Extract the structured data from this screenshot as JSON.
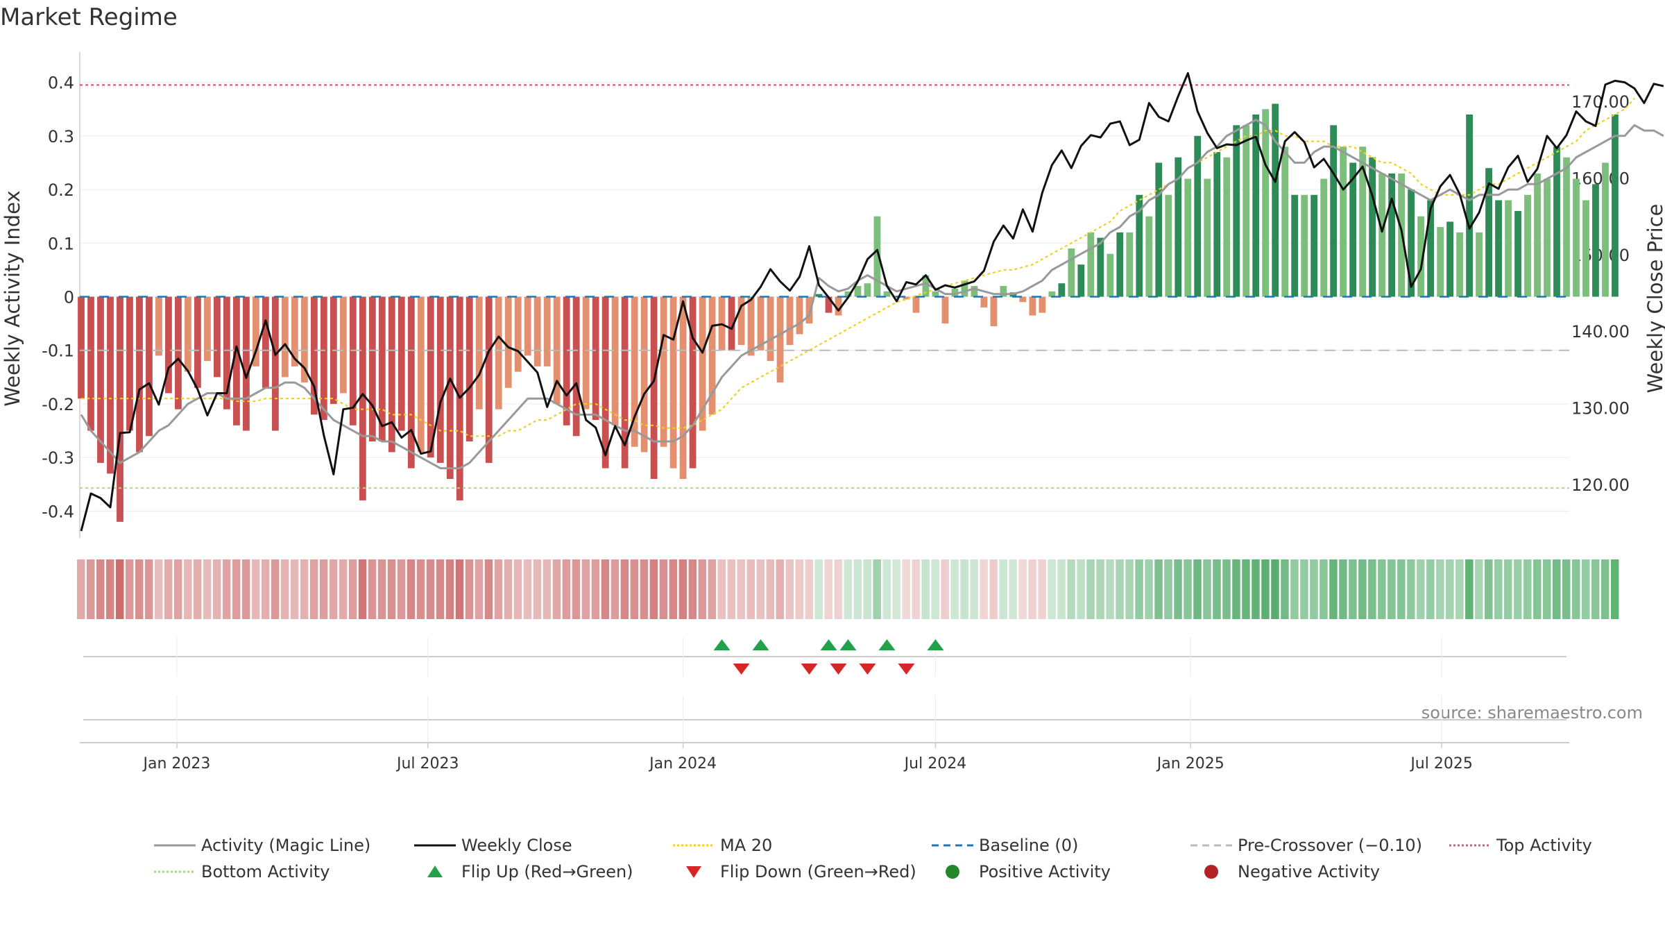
{
  "title": "Market Regime",
  "chart_data": {
    "type": "bar",
    "title": "Market Regime",
    "source_text": "source: sharemaestro.com",
    "x_axis": {
      "range": [
        "2022-10-23",
        "2025-10-01"
      ],
      "ticks": [
        "Jan 2023",
        "Jul 2023",
        "Jan 2024",
        "Jul 2024",
        "Jan 2025",
        "Jul 2025"
      ],
      "tick_dates": [
        "2023-01-01",
        "2023-07-01",
        "2024-01-01",
        "2024-07-01",
        "2025-01-01",
        "2025-07-01"
      ]
    },
    "left_axis": {
      "label": "Weekly Activity Index",
      "range": [
        -0.45,
        0.45
      ],
      "ticks": [
        -0.4,
        -0.3,
        -0.2,
        -0.1,
        0,
        0.1,
        0.2,
        0.3,
        0.4
      ],
      "tick_labels": [
        "-0.4",
        "-0.3",
        "-0.2",
        "-0.1",
        "0",
        "0.1",
        "0.2",
        "0.3",
        "0.4"
      ]
    },
    "right_axis": {
      "label": "Weekly Close Price",
      "range": [
        113,
        176
      ],
      "ticks": [
        120,
        130,
        140,
        150,
        160,
        170
      ],
      "tick_labels": [
        "120.00",
        "130.00",
        "140.00",
        "150.00",
        "160.00",
        "170.00"
      ]
    },
    "reference_lines": {
      "top_activity": 0.395,
      "bottom_activity": -0.357,
      "baseline": 0,
      "pre_crossover": -0.1
    },
    "flip_up_weeks": [
      66,
      70,
      77,
      79,
      83,
      88
    ],
    "flip_down_weeks": [
      68,
      75,
      78,
      81,
      85
    ],
    "colors": {
      "neg_strong": "#c85050",
      "neg_light": "#e39070",
      "pos_strong": "#2e8b57",
      "pos_light": "#7dbe7d",
      "magic_line": "#999999",
      "weekly_close": "#111111",
      "ma20": "#f0d020",
      "baseline": "#1f77b4",
      "pre_crossover": "#bbbbbb",
      "top_activity": "#e05a6a",
      "bottom_activity": "#a8d88a",
      "flip_up": "#22a04a",
      "flip_down": "#d62728",
      "positive_marker": "#22882a",
      "negative_marker": "#b22222"
    },
    "legend": [
      {
        "label": "Activity (Magic Line)",
        "kind": "line",
        "color": "#999999",
        "dash": ""
      },
      {
        "label": "Weekly Close",
        "kind": "line",
        "color": "#111111",
        "dash": ""
      },
      {
        "label": "MA 20",
        "kind": "line",
        "color": "#f0d020",
        "dash": "3,3"
      },
      {
        "label": "Baseline (0)",
        "kind": "line",
        "color": "#1f77b4",
        "dash": "10,7"
      },
      {
        "label": "Pre-Crossover (−0.10)",
        "kind": "line",
        "color": "#bbbbbb",
        "dash": "10,7"
      },
      {
        "label": "Top Activity",
        "kind": "line",
        "color": "#e05a6a",
        "dash": "3,3"
      },
      {
        "label": "Bottom Activity",
        "kind": "line",
        "color": "#a8d88a",
        "dash": "3,3"
      },
      {
        "label": "Flip Up (Red→Green)",
        "kind": "tri-up",
        "color": "#22a04a",
        "dash": ""
      },
      {
        "label": "Flip Down (Green→Red)",
        "kind": "tri-down",
        "color": "#d62728",
        "dash": ""
      },
      {
        "label": "Positive Activity",
        "kind": "dot",
        "color": "#22882a",
        "dash": ""
      },
      {
        "label": "Negative Activity",
        "kind": "dot",
        "color": "#b22222",
        "dash": ""
      }
    ],
    "series": [
      {
        "name": "Weekly Activity",
        "start_date": "2022-10-24",
        "step_days": 7,
        "values": [
          -0.19,
          -0.25,
          -0.31,
          -0.33,
          -0.42,
          -0.25,
          -0.29,
          -0.26,
          -0.11,
          -0.18,
          -0.21,
          -0.14,
          -0.17,
          -0.12,
          -0.15,
          -0.21,
          -0.24,
          -0.25,
          -0.13,
          -0.17,
          -0.25,
          -0.15,
          -0.13,
          -0.16,
          -0.22,
          -0.23,
          -0.2,
          -0.18,
          -0.24,
          -0.38,
          -0.27,
          -0.27,
          -0.29,
          -0.25,
          -0.32,
          -0.29,
          -0.3,
          -0.31,
          -0.34,
          -0.38,
          -0.27,
          -0.21,
          -0.31,
          -0.21,
          -0.17,
          -0.14,
          -0.11,
          -0.13,
          -0.13,
          -0.2,
          -0.24,
          -0.26,
          -0.21,
          -0.23,
          -0.32,
          -0.24,
          -0.32,
          -0.28,
          -0.29,
          -0.34,
          -0.28,
          -0.32,
          -0.34,
          -0.32,
          -0.25,
          -0.22,
          -0.1,
          -0.1,
          -0.09,
          -0.11,
          -0.1,
          -0.12,
          -0.16,
          -0.09,
          -0.07,
          -0.05,
          0.005,
          -0.03,
          -0.035,
          0.01,
          0.02,
          0.025,
          0.15,
          0.01,
          0.002,
          -0.005,
          -0.03,
          0.04,
          0.01,
          -0.05,
          0.015,
          0.03,
          0.02,
          -0.02,
          -0.055,
          0.02,
          0.008,
          -0.01,
          -0.035,
          -0.03,
          0.01,
          0.025,
          0.09,
          0.06,
          0.12,
          0.11,
          0.08,
          0.12,
          0.12,
          0.19,
          0.15,
          0.25,
          0.19,
          0.26,
          0.22,
          0.3,
          0.22,
          0.27,
          0.26,
          0.32,
          0.32,
          0.34,
          0.35,
          0.36,
          0.28,
          0.19,
          0.19,
          0.19,
          0.22,
          0.32,
          0.28,
          0.25,
          0.28,
          0.26,
          0.23,
          0.23,
          0.23,
          0.2,
          0.15,
          0.18,
          0.13,
          0.14,
          0.12,
          0.34,
          0.12,
          0.24,
          0.18,
          0.18,
          0.16,
          0.19,
          0.23,
          0.22,
          0.28,
          0.26,
          0.22,
          0.18,
          0.21,
          0.25,
          0.34
        ],
        "strength": [
          1,
          1,
          1,
          1,
          1,
          1,
          1,
          1,
          0,
          1,
          1,
          0,
          1,
          0,
          1,
          1,
          1,
          1,
          0,
          1,
          1,
          0,
          0,
          0,
          1,
          1,
          1,
          0,
          1,
          1,
          1,
          1,
          1,
          1,
          1,
          0,
          1,
          1,
          1,
          1,
          1,
          0,
          1,
          0,
          0,
          0,
          0,
          0,
          0,
          0,
          1,
          1,
          0,
          1,
          1,
          0,
          1,
          0,
          0,
          1,
          0,
          0,
          0,
          1,
          0,
          0,
          0,
          1,
          0,
          0,
          0,
          0,
          0,
          0,
          0,
          0,
          1,
          1,
          0,
          0,
          0,
          0,
          0,
          0,
          0,
          0,
          0,
          0,
          0,
          0,
          0,
          0,
          0,
          0,
          0,
          0,
          1,
          0,
          0,
          0,
          0,
          1,
          0,
          1,
          0,
          1,
          0,
          1,
          0,
          1,
          0,
          1,
          0,
          1,
          0,
          1,
          0,
          1,
          0,
          1,
          0,
          1,
          0,
          1,
          0,
          1,
          0,
          1,
          0,
          1,
          0,
          1,
          0,
          1,
          0,
          1,
          0,
          1,
          0,
          1,
          0,
          1,
          0,
          1,
          0,
          1,
          1,
          0,
          1,
          0,
          0,
          0,
          1,
          0,
          0,
          0,
          1,
          0,
          1,
          0,
          1,
          0,
          1,
          0,
          1,
          0,
          1,
          1,
          0
        ]
      },
      {
        "name": "Weekly Close",
        "start_date": "2022-10-24",
        "step_days": 7,
        "values": [
          113.9,
          118.8,
          118.2,
          117.0,
          126.7,
          126.8,
          132.4,
          133.2,
          130.4,
          135.2,
          136.4,
          134.8,
          132.4,
          129.0,
          131.9,
          131.9,
          138.0,
          133.9,
          137.4,
          141.4,
          136.9,
          138.3,
          136.4,
          135.2,
          132.8,
          126.4,
          121.3,
          129.8,
          130.0,
          131.8,
          130.3,
          127.6,
          128.1,
          126.1,
          127.1,
          124.0,
          124.3,
          130.7,
          133.8,
          131.3,
          132.6,
          134.3,
          137.4,
          139.3,
          137.9,
          137.4,
          136.0,
          134.6,
          130.1,
          133.5,
          131.6,
          133.2,
          128.4,
          127.4,
          123.8,
          127.6,
          125.1,
          128.8,
          131.8,
          133.5,
          139.5,
          138.9,
          143.9,
          139.1,
          137.2,
          140.7,
          140.9,
          140.3,
          143.3,
          144.1,
          145.8,
          148.1,
          146.5,
          145.3,
          147.1,
          151.1,
          146.0,
          144.4,
          142.7,
          144.4,
          146.5,
          149.4,
          150.6,
          145.9,
          143.9,
          146.4,
          146.1,
          147.3,
          145.4,
          146.0,
          145.7,
          146.1,
          146.5,
          147.9,
          151.7,
          153.8,
          152.1,
          155.9,
          153.0,
          158.1,
          161.7,
          163.6,
          161.3,
          164.2,
          165.6,
          165.3,
          167.1,
          167.4,
          164.3,
          165.0,
          169.8,
          168.0,
          167.4,
          170.7,
          173.7,
          168.7,
          165.9,
          163.9,
          164.4,
          164.3,
          164.9,
          165.4,
          161.7,
          159.5,
          164.8,
          166.0,
          164.7,
          161.4,
          162.5,
          160.6,
          158.5,
          159.9,
          161.5,
          157.7,
          153.0,
          157.3,
          153.2,
          145.8,
          148.1,
          156.0,
          158.9,
          160.4,
          157.9,
          153.4,
          155.5,
          159.3,
          158.6,
          161.4,
          162.9,
          159.5,
          161.2,
          165.5,
          163.9,
          165.6,
          168.7,
          167.4,
          166.8,
          172.2,
          172.7,
          172.5,
          171.7,
          169.8,
          172.3,
          172.0
        ]
      },
      {
        "name": "Activity (Magic Line)",
        "start_date": "2022-10-24",
        "step_days": 7,
        "values": [
          -0.22,
          -0.25,
          -0.27,
          -0.29,
          -0.31,
          -0.3,
          -0.29,
          -0.27,
          -0.25,
          -0.24,
          -0.22,
          -0.2,
          -0.19,
          -0.18,
          -0.18,
          -0.19,
          -0.19,
          -0.19,
          -0.18,
          -0.17,
          -0.17,
          -0.16,
          -0.16,
          -0.17,
          -0.19,
          -0.21,
          -0.23,
          -0.24,
          -0.25,
          -0.26,
          -0.26,
          -0.27,
          -0.27,
          -0.28,
          -0.29,
          -0.3,
          -0.31,
          -0.32,
          -0.32,
          -0.32,
          -0.31,
          -0.29,
          -0.27,
          -0.25,
          -0.23,
          -0.21,
          -0.19,
          -0.19,
          -0.19,
          -0.2,
          -0.21,
          -0.22,
          -0.22,
          -0.22,
          -0.23,
          -0.24,
          -0.25,
          -0.25,
          -0.26,
          -0.27,
          -0.27,
          -0.27,
          -0.26,
          -0.24,
          -0.21,
          -0.18,
          -0.15,
          -0.13,
          -0.11,
          -0.1,
          -0.09,
          -0.08,
          -0.07,
          -0.06,
          -0.05,
          -0.035,
          0.035,
          0.02,
          0.01,
          0.015,
          0.03,
          0.04,
          0.03,
          0.02,
          0.01,
          0.015,
          0.02,
          0.025,
          0.015,
          0.005,
          0.005,
          0.01,
          0.015,
          0.01,
          0.005,
          0.005,
          0.005,
          0.01,
          0.02,
          0.03,
          0.05,
          0.06,
          0.07,
          0.08,
          0.09,
          0.1,
          0.12,
          0.13,
          0.15,
          0.16,
          0.18,
          0.19,
          0.21,
          0.22,
          0.24,
          0.25,
          0.27,
          0.28,
          0.3,
          0.31,
          0.32,
          0.33,
          0.32,
          0.29,
          0.27,
          0.25,
          0.25,
          0.27,
          0.28,
          0.28,
          0.27,
          0.26,
          0.25,
          0.24,
          0.23,
          0.22,
          0.21,
          0.2,
          0.19,
          0.18,
          0.19,
          0.2,
          0.19,
          0.18,
          0.19,
          0.19,
          0.19,
          0.2,
          0.2,
          0.21,
          0.21,
          0.22,
          0.23,
          0.24,
          0.26,
          0.27,
          0.28,
          0.29,
          0.3,
          0.3,
          0.32,
          0.31,
          0.31,
          0.3
        ]
      },
      {
        "name": "MA 20",
        "start_date": "2022-10-24",
        "step_days": 7,
        "values": [
          -0.19,
          -0.19,
          -0.19,
          -0.19,
          -0.19,
          -0.19,
          -0.19,
          -0.19,
          -0.19,
          -0.19,
          -0.19,
          -0.19,
          -0.19,
          -0.19,
          -0.19,
          -0.19,
          -0.195,
          -0.195,
          -0.195,
          -0.19,
          -0.19,
          -0.19,
          -0.19,
          -0.19,
          -0.19,
          -0.19,
          -0.19,
          -0.2,
          -0.21,
          -0.21,
          -0.21,
          -0.21,
          -0.22,
          -0.22,
          -0.22,
          -0.23,
          -0.24,
          -0.25,
          -0.25,
          -0.25,
          -0.26,
          -0.26,
          -0.26,
          -0.26,
          -0.25,
          -0.25,
          -0.24,
          -0.23,
          -0.23,
          -0.22,
          -0.21,
          -0.2,
          -0.2,
          -0.2,
          -0.21,
          -0.22,
          -0.23,
          -0.23,
          -0.24,
          -0.24,
          -0.245,
          -0.245,
          -0.245,
          -0.24,
          -0.23,
          -0.22,
          -0.21,
          -0.19,
          -0.17,
          -0.16,
          -0.15,
          -0.14,
          -0.13,
          -0.12,
          -0.11,
          -0.1,
          -0.09,
          -0.08,
          -0.07,
          -0.06,
          -0.05,
          -0.04,
          -0.03,
          -0.02,
          -0.01,
          -0.005,
          0.002,
          0.008,
          0.014,
          0.02,
          0.025,
          0.03,
          0.035,
          0.04,
          0.045,
          0.05,
          0.05,
          0.055,
          0.06,
          0.07,
          0.08,
          0.09,
          0.1,
          0.11,
          0.12,
          0.13,
          0.14,
          0.16,
          0.17,
          0.18,
          0.19,
          0.2,
          0.21,
          0.22,
          0.24,
          0.25,
          0.26,
          0.27,
          0.28,
          0.29,
          0.3,
          0.3,
          0.31,
          0.31,
          0.3,
          0.3,
          0.29,
          0.29,
          0.29,
          0.28,
          0.28,
          0.28,
          0.27,
          0.26,
          0.25,
          0.25,
          0.24,
          0.23,
          0.21,
          0.2,
          0.19,
          0.19,
          0.19,
          0.19,
          0.2,
          0.21,
          0.21,
          0.22,
          0.23,
          0.24,
          0.25,
          0.26,
          0.27,
          0.28,
          0.29,
          0.31,
          0.32,
          0.33,
          0.34,
          0.35,
          0.37
        ]
      }
    ]
  }
}
